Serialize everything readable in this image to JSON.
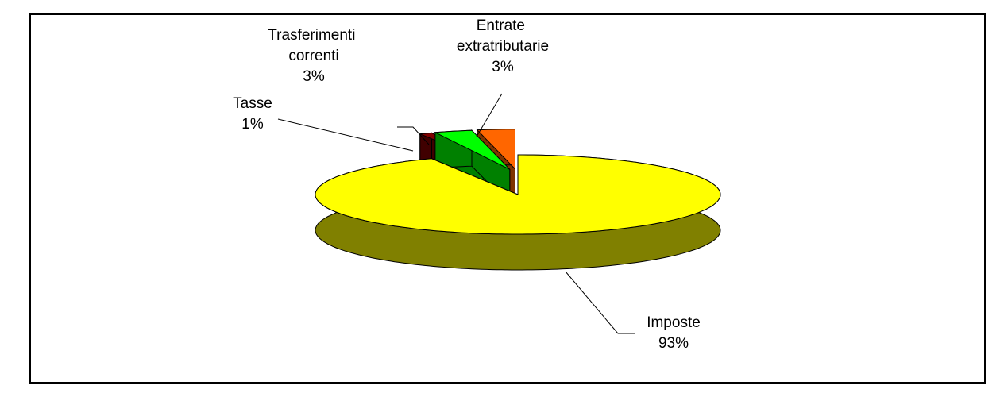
{
  "chart_data": {
    "type": "pie3d",
    "categories": [
      "Imposte",
      "Tasse",
      "Trasferimenti correnti",
      "Entrate extratributarie"
    ],
    "values": [
      93,
      1,
      3,
      3
    ],
    "value_labels": [
      "93%",
      "1%",
      "3%",
      "3%"
    ],
    "colors": [
      "#ffff00",
      "#800000",
      "#00ff00",
      "#ff6600"
    ]
  }
}
